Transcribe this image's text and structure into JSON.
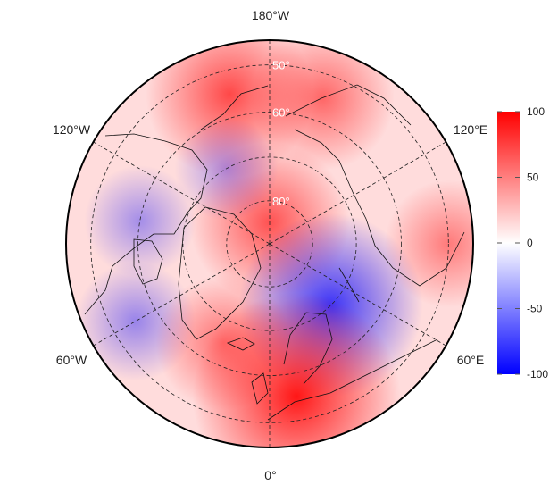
{
  "projection": "north-polar stereographic",
  "longitude_labels": {
    "top": "180°W",
    "upper_left": "120°W",
    "upper_right": "120°E",
    "lower_left": "60°W",
    "lower_right": "60°E",
    "bottom": "0°"
  },
  "latitude_labels": [
    "50°",
    "60°",
    "80°"
  ],
  "colorbar": {
    "ticks": [
      "100",
      "50",
      "0",
      "-50",
      "-100"
    ],
    "min": -100,
    "max": 100,
    "colors": {
      "high": "#ff0000",
      "mid": "#ffffff",
      "low": "#0000ff"
    }
  },
  "anomaly_field": [
    {
      "lat": 85,
      "lon": 180,
      "value": 55
    },
    {
      "lat": 55,
      "lon": -165,
      "value": 60
    },
    {
      "lat": 55,
      "lon": 160,
      "value": 45
    },
    {
      "lat": 70,
      "lon": -150,
      "value": -20
    },
    {
      "lat": 60,
      "lon": -100,
      "value": -25
    },
    {
      "lat": 55,
      "lon": -60,
      "value": -30
    },
    {
      "lat": 70,
      "lon": 45,
      "value": -70
    },
    {
      "lat": 55,
      "lon": 10,
      "value": 85
    },
    {
      "lat": 65,
      "lon": -25,
      "value": 40
    },
    {
      "lat": 50,
      "lon": 90,
      "value": 35
    }
  ]
}
